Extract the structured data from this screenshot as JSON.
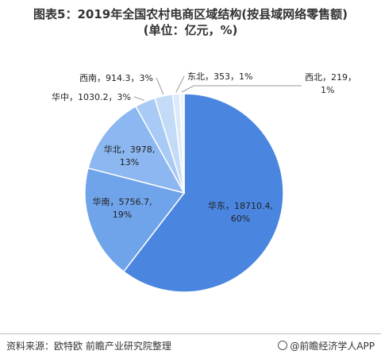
{
  "title": {
    "line1": "图表5：2019年全国农村电商区域结构(按县域网络零售额)",
    "line2": "(单位：亿元，%)"
  },
  "chart_data": {
    "type": "pie",
    "slices": [
      {
        "name": "华东",
        "value": 18710.4,
        "percent": "60%",
        "color": "#4a86e0"
      },
      {
        "name": "华南",
        "value": 5756.7,
        "percent": "19%",
        "color": "#6fa3ea"
      },
      {
        "name": "华北",
        "value": 3978,
        "percent": "13%",
        "color": "#8cb7f0"
      },
      {
        "name": "华中",
        "value": 1030.2,
        "percent": "3%",
        "color": "#a9caf4"
      },
      {
        "name": "西南",
        "value": 914.3,
        "percent": "3%",
        "color": "#c4dbf8"
      },
      {
        "name": "东北",
        "value": 353,
        "percent": "1%",
        "color": "#dbe9fb"
      },
      {
        "name": "西北",
        "value": 219,
        "percent": "1%",
        "color": "#eef5fd"
      }
    ]
  },
  "footer": {
    "source": "资料来源：欧特欧 前瞻产业研究院整理",
    "brand": "@前瞻经济学人APP"
  }
}
